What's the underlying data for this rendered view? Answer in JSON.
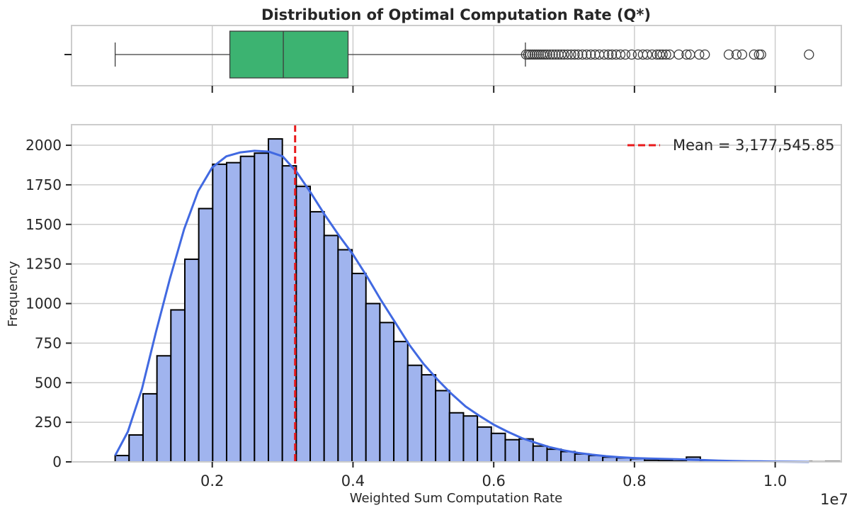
{
  "chart_data": [
    {
      "type": "box",
      "title": "Distribution of Optimal Computation Rate (Q*)",
      "orientation": "horizontal",
      "xlim": [
        0.0,
        1.094
      ],
      "x_ticks": [
        0.2,
        0.4,
        0.6,
        0.8,
        1.0
      ],
      "grid": true,
      "box": {
        "whisker_low": 0.062,
        "q1": 0.225,
        "median": 0.301,
        "q3": 0.393,
        "whisker_high": 0.645,
        "fill_color": "#3cb371"
      },
      "outliers": [
        0.646,
        0.649,
        0.652,
        0.655,
        0.658,
        0.661,
        0.664,
        0.667,
        0.67,
        0.673,
        0.676,
        0.68,
        0.684,
        0.688,
        0.692,
        0.696,
        0.7,
        0.705,
        0.71,
        0.715,
        0.72,
        0.726,
        0.732,
        0.738,
        0.744,
        0.75,
        0.757,
        0.763,
        0.768,
        0.774,
        0.78,
        0.787,
        0.796,
        0.805,
        0.812,
        0.818,
        0.825,
        0.832,
        0.836,
        0.84,
        0.845,
        0.85,
        0.863,
        0.874,
        0.879,
        0.892,
        0.9,
        0.934,
        0.945,
        0.953,
        0.97,
        0.977,
        0.98,
        1.048
      ]
    },
    {
      "type": "bar",
      "subtype": "histogram_with_kde",
      "xlabel": "Weighted Sum Computation Rate",
      "ylabel": "Frequency",
      "x_offset_label": "1e7",
      "xlim": [
        0.0,
        1.094
      ],
      "ylim": [
        0,
        2130
      ],
      "x_ticks": [
        0.2,
        0.4,
        0.6,
        0.8,
        1.0
      ],
      "x_tick_labels": [
        "0.2",
        "0.4",
        "0.6",
        "0.8",
        "1.0"
      ],
      "y_ticks": [
        0,
        250,
        500,
        750,
        1000,
        1250,
        1500,
        1750,
        2000
      ],
      "y_tick_labels": [
        "0",
        "250",
        "500",
        "750",
        "1000",
        "1250",
        "1500",
        "1750",
        "2000"
      ],
      "grid": true,
      "bins": {
        "start": 0.062,
        "width": 0.0198,
        "counts": [
          40,
          170,
          430,
          670,
          960,
          1280,
          1600,
          1880,
          1890,
          1930,
          1950,
          2040,
          1870,
          1740,
          1580,
          1430,
          1340,
          1190,
          1000,
          880,
          760,
          610,
          550,
          450,
          310,
          290,
          220,
          180,
          140,
          145,
          100,
          80,
          65,
          50,
          40,
          30,
          25,
          20,
          10,
          8,
          5,
          30,
          8,
          5,
          3,
          2,
          2,
          2,
          1,
          2,
          1,
          2
        ]
      },
      "kde": {
        "x": [
          0.062,
          0.08,
          0.1,
          0.12,
          0.14,
          0.16,
          0.18,
          0.2,
          0.22,
          0.24,
          0.26,
          0.28,
          0.3,
          0.32,
          0.34,
          0.36,
          0.38,
          0.4,
          0.42,
          0.44,
          0.46,
          0.48,
          0.5,
          0.52,
          0.54,
          0.56,
          0.58,
          0.6,
          0.62,
          0.64,
          0.66,
          0.68,
          0.7,
          0.72,
          0.74,
          0.76,
          0.78,
          0.8,
          0.82,
          0.84,
          0.86,
          0.88,
          0.9,
          0.92,
          0.94,
          0.96,
          0.98,
          1.0,
          1.02,
          1.048
        ],
        "y": [
          40,
          190,
          460,
          820,
          1160,
          1470,
          1710,
          1860,
          1930,
          1955,
          1965,
          1960,
          1930,
          1830,
          1700,
          1560,
          1430,
          1310,
          1170,
          1020,
          880,
          740,
          620,
          520,
          430,
          350,
          290,
          235,
          190,
          150,
          120,
          92,
          72,
          57,
          45,
          36,
          29,
          24,
          21,
          19,
          17,
          14,
          11,
          8,
          6,
          4,
          3,
          2,
          1,
          0
        ]
      },
      "mean": 0.3177545,
      "bar_color": "#a0b4ee",
      "kde_color": "#4169e1",
      "mean_color": "#e8191b",
      "legend": {
        "position": "top-right",
        "entries": [
          "Mean = 3,177,545.85"
        ]
      }
    }
  ]
}
